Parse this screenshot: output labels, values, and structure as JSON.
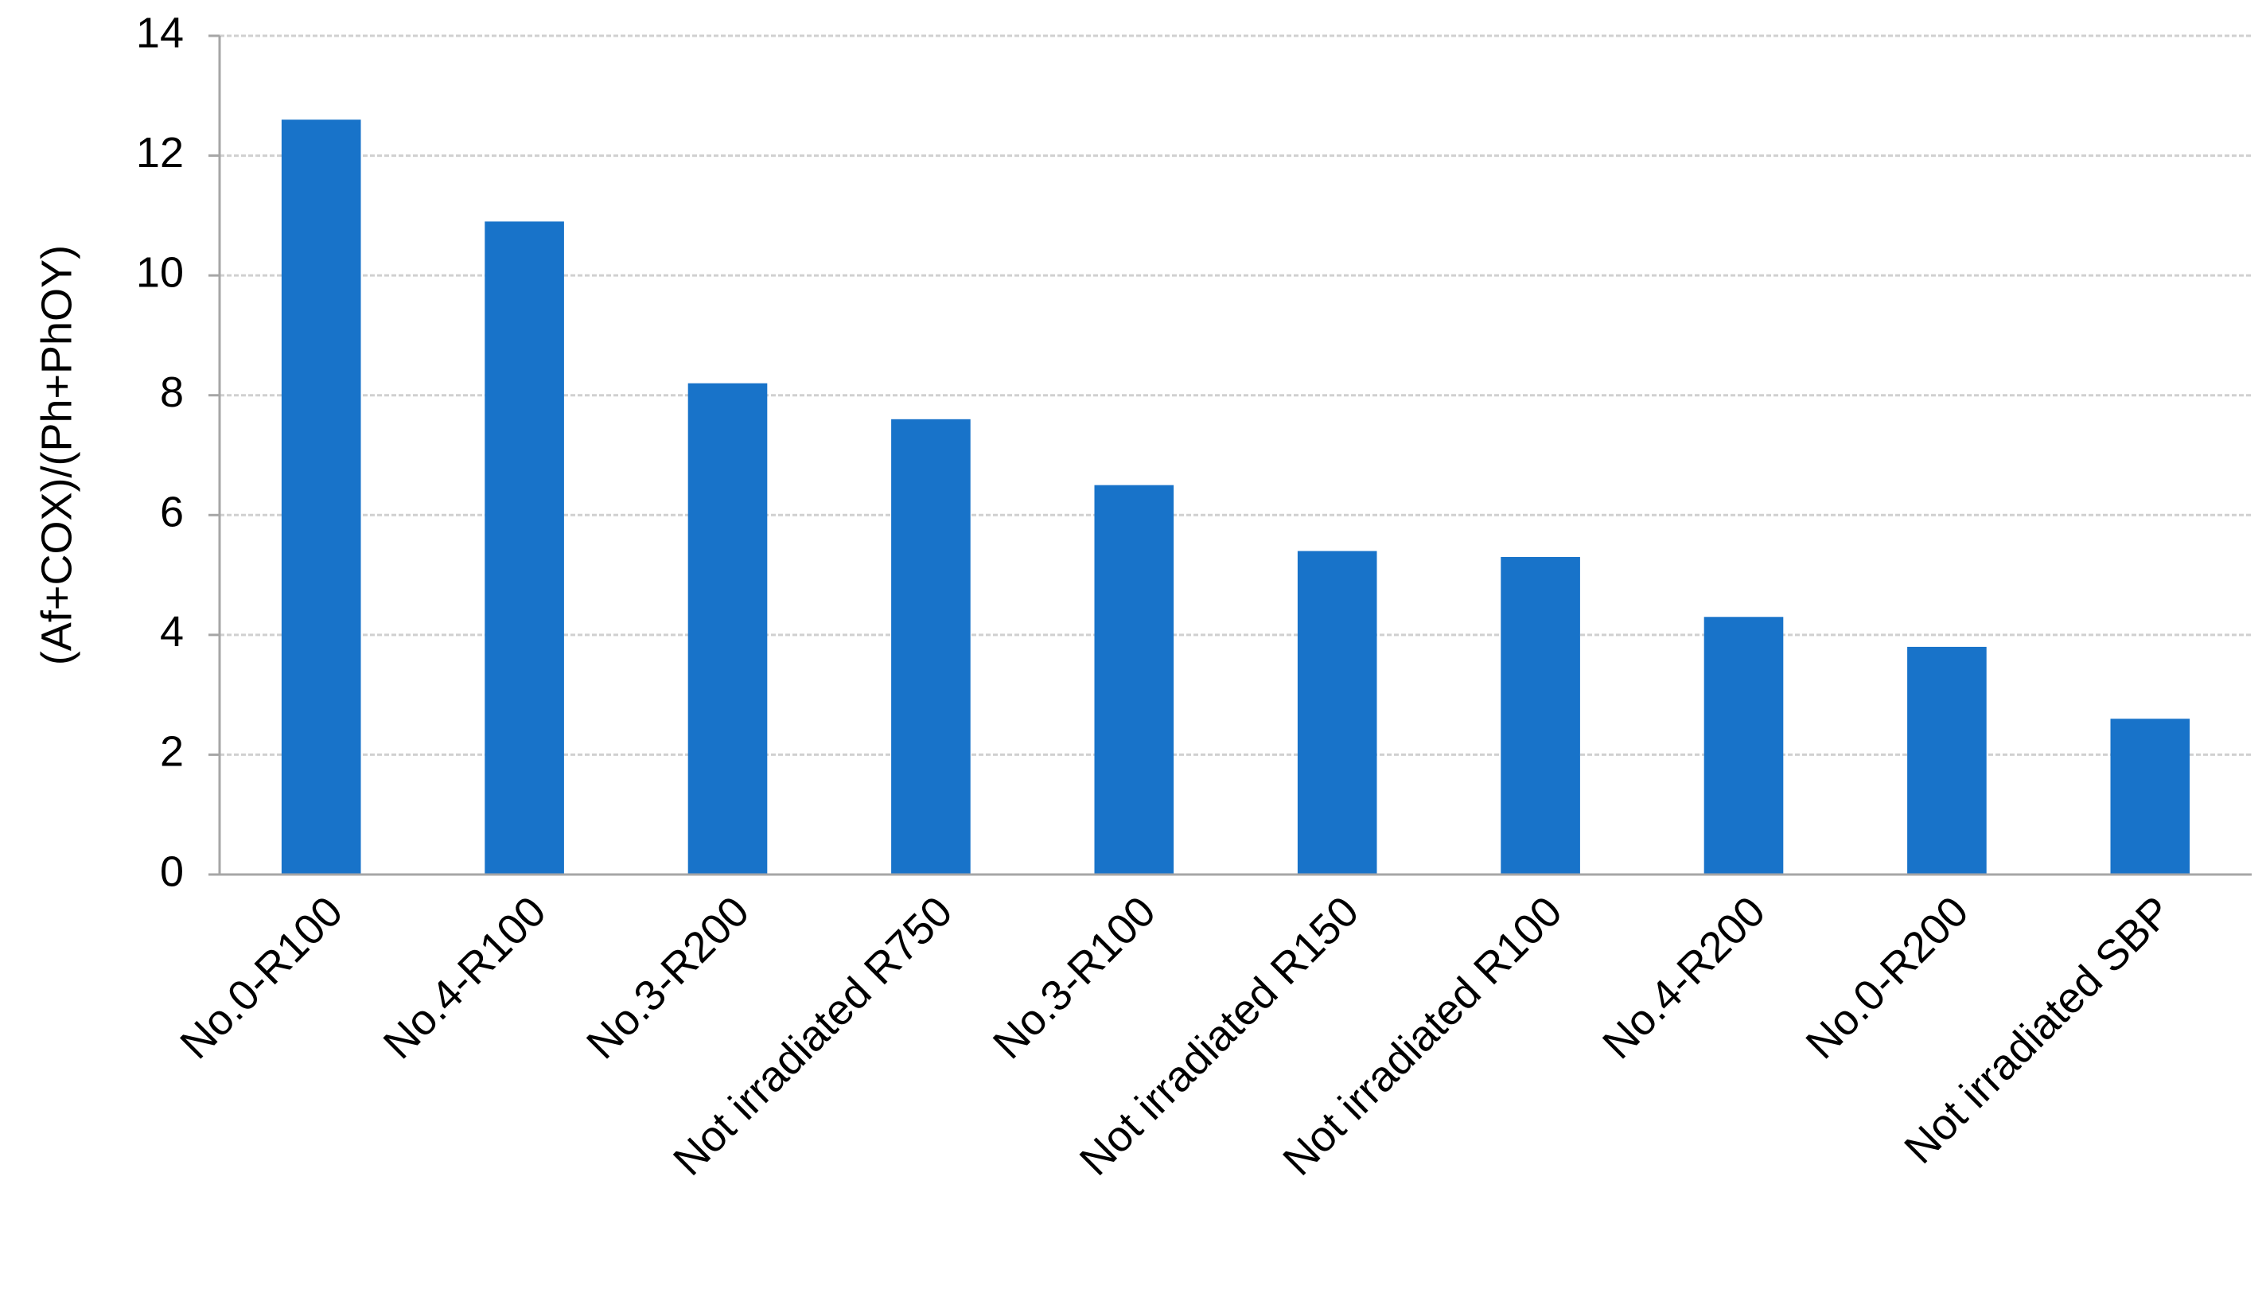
{
  "chart_data": {
    "type": "bar",
    "y_label": "(Af+COX)/(Ph+PhOY)",
    "categories": [
      "No.0-R100",
      "No.4-R100",
      "No.3-R200",
      "Not irradiated R750",
      "No.3-R100",
      "Not irradiated R150",
      "Not irradiated R100",
      "No.4-R200",
      "No.0-R200",
      "Not irradiated SBP"
    ],
    "values": [
      12.6,
      10.9,
      8.2,
      7.6,
      6.5,
      5.4,
      5.3,
      4.3,
      3.8,
      2.6
    ],
    "color": "#1873c9",
    "ylim": [
      0,
      14
    ],
    "yticks": [
      0,
      2,
      4,
      6,
      8,
      10,
      12,
      14
    ],
    "grid": true
  }
}
